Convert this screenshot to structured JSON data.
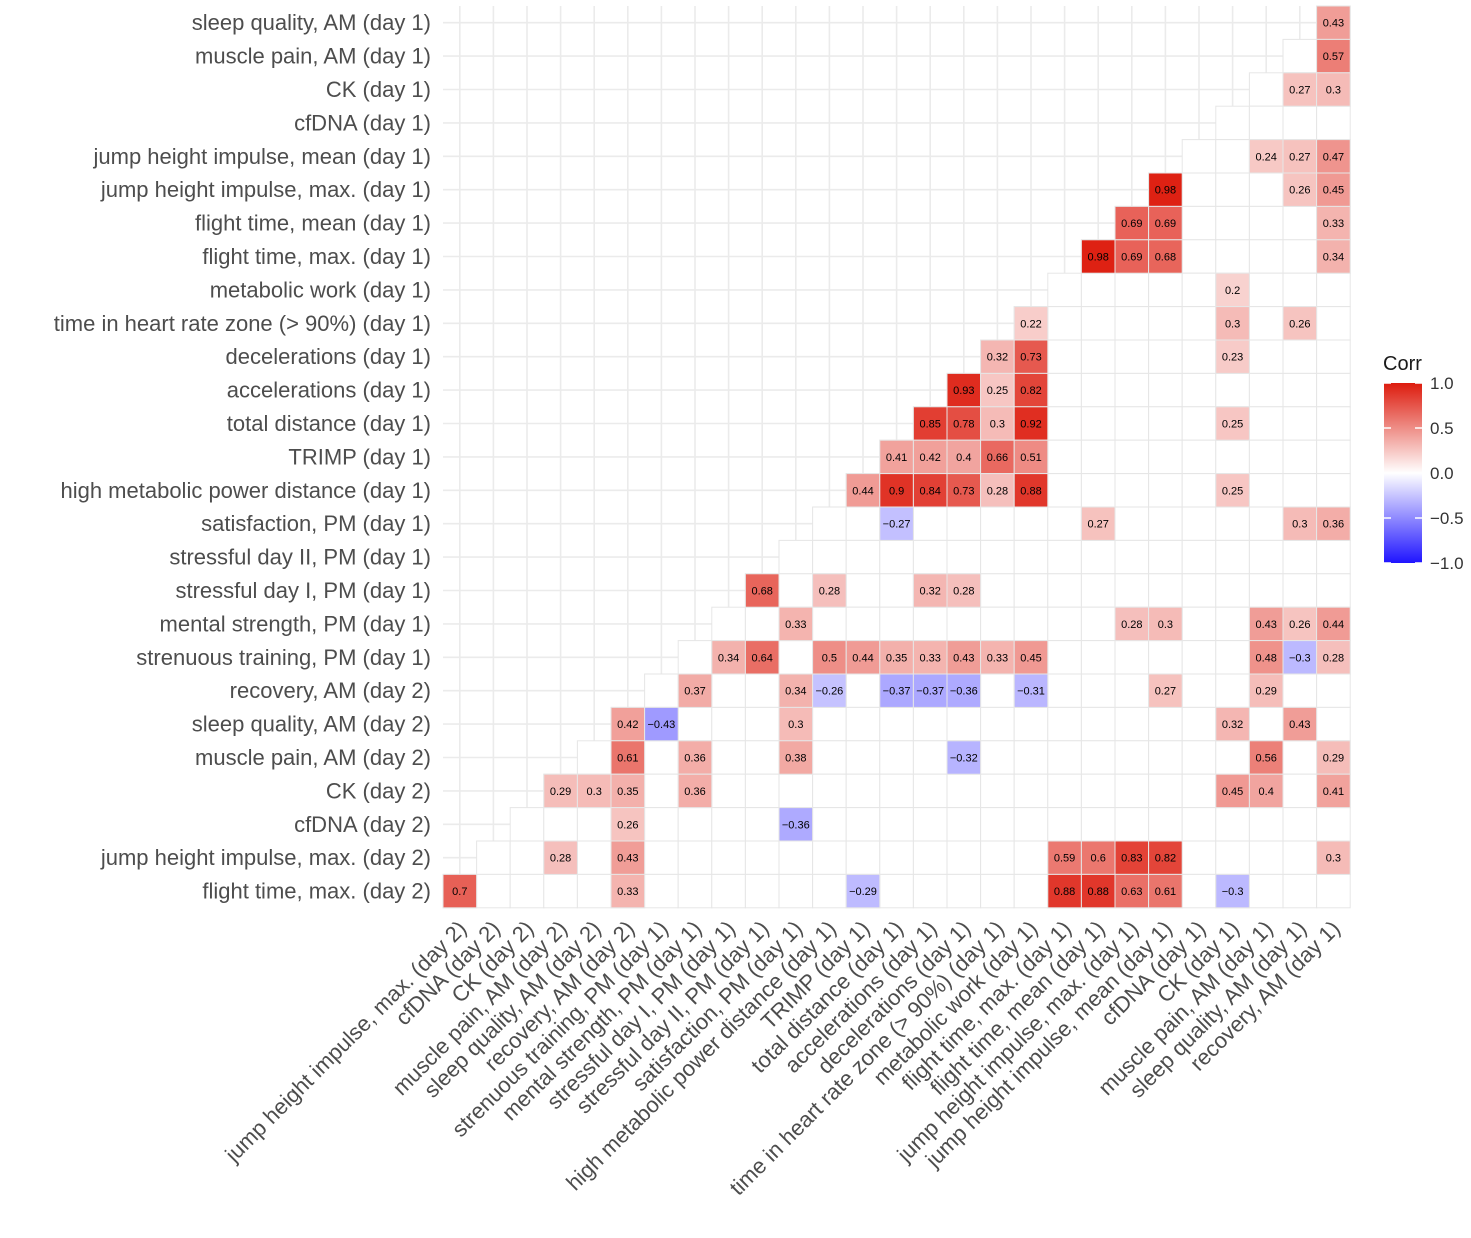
{
  "chart_data": {
    "type": "heatmap",
    "title": "",
    "legend_title": "Corr",
    "legend_range": [
      -1.0,
      1.0
    ],
    "legend_ticks": [
      "1.0",
      "0.5",
      "0.0",
      "−0.5",
      "−1.0"
    ],
    "legend_tick_values": [
      1.0,
      0.5,
      0.0,
      -0.5,
      -1.0
    ],
    "legend_position": "right",
    "colors": {
      "high": "#dd1c0e",
      "mid": "#ffffff",
      "low": "#1f14ff",
      "grid": "#ebebeb",
      "cell_border": "#e6e6e6"
    },
    "rows": [
      "sleep quality, AM (day 1)",
      "muscle pain, AM (day 1)",
      "CK (day 1)",
      "cfDNA (day 1)",
      "jump height impulse, mean (day 1)",
      "jump height impulse, max. (day 1)",
      "flight time, mean (day 1)",
      "flight time, max. (day 1)",
      "metabolic work (day 1)",
      "time in heart rate zone (> 90%) (day 1)",
      "decelerations (day 1)",
      "accelerations (day 1)",
      "total distance (day 1)",
      "TRIMP (day 1)",
      "high metabolic power distance (day 1)",
      "satisfaction, PM (day 1)",
      "stressful day II, PM (day 1)",
      "stressful day I, PM (day 1)",
      "mental strength, PM (day 1)",
      "strenuous training, PM (day 1)",
      "recovery, AM (day 2)",
      "sleep quality, AM (day 2)",
      "muscle pain, AM (day 2)",
      "CK (day 2)",
      "cfDNA (day 2)",
      "jump height impulse, max. (day 2)",
      "flight time, max. (day 2)"
    ],
    "columns": [
      "jump height impulse, max. (day 2)",
      "cfDNA (day 2)",
      "CK (day 2)",
      "muscle pain, AM (day 2)",
      "sleep quality, AM (day 2)",
      "recovery, AM (day 2)",
      "strenuous training, PM (day 1)",
      "mental strength, PM (day 1)",
      "stressful day I, PM (day 1)",
      "stressful day II, PM (day 1)",
      "satisfaction, PM (day 1)",
      "high metabolic power distance (day 1)",
      "TRIMP (day 1)",
      "total distance (day 1)",
      "accelerations (day 1)",
      "decelerations (day 1)",
      "time in heart rate zone (> 90%) (day 1)",
      "metabolic work (day 1)",
      "flight time, max. (day 1)",
      "flight time, mean (day 1)",
      "jump height impulse, max. (day 1)",
      "jump height impulse, mean (day 1)",
      "cfDNA (day 1)",
      "CK (day 1)",
      "muscle pain, AM (day 1)",
      "sleep quality, AM (day 1)",
      "recovery, AM (day 1)"
    ],
    "cells": [
      {
        "row": 0,
        "col": 26,
        "value": 0.43,
        "label": "0.43"
      },
      {
        "row": 1,
        "col": 26,
        "value": 0.57,
        "label": "0.57"
      },
      {
        "row": 2,
        "col": 25,
        "value": 0.27,
        "label": "0.27"
      },
      {
        "row": 2,
        "col": 26,
        "value": 0.3,
        "label": "0.3"
      },
      {
        "row": 4,
        "col": 24,
        "value": 0.24,
        "label": "0.24"
      },
      {
        "row": 4,
        "col": 25,
        "value": 0.27,
        "label": "0.27"
      },
      {
        "row": 4,
        "col": 26,
        "value": 0.47,
        "label": "0.47"
      },
      {
        "row": 5,
        "col": 21,
        "value": 0.98,
        "label": "0.98"
      },
      {
        "row": 5,
        "col": 25,
        "value": 0.26,
        "label": "0.26"
      },
      {
        "row": 5,
        "col": 26,
        "value": 0.45,
        "label": "0.45"
      },
      {
        "row": 6,
        "col": 20,
        "value": 0.69,
        "label": "0.69"
      },
      {
        "row": 6,
        "col": 21,
        "value": 0.69,
        "label": "0.69"
      },
      {
        "row": 6,
        "col": 26,
        "value": 0.33,
        "label": "0.33"
      },
      {
        "row": 7,
        "col": 19,
        "value": 0.98,
        "label": "0.98"
      },
      {
        "row": 7,
        "col": 20,
        "value": 0.69,
        "label": "0.69"
      },
      {
        "row": 7,
        "col": 21,
        "value": 0.68,
        "label": "0.68"
      },
      {
        "row": 7,
        "col": 26,
        "value": 0.34,
        "label": "0.34"
      },
      {
        "row": 8,
        "col": 23,
        "value": 0.2,
        "label": "0.2"
      },
      {
        "row": 9,
        "col": 17,
        "value": 0.22,
        "label": "0.22"
      },
      {
        "row": 9,
        "col": 23,
        "value": 0.3,
        "label": "0.3"
      },
      {
        "row": 9,
        "col": 25,
        "value": 0.26,
        "label": "0.26"
      },
      {
        "row": 10,
        "col": 16,
        "value": 0.32,
        "label": "0.32"
      },
      {
        "row": 10,
        "col": 17,
        "value": 0.73,
        "label": "0.73"
      },
      {
        "row": 10,
        "col": 23,
        "value": 0.23,
        "label": "0.23"
      },
      {
        "row": 11,
        "col": 15,
        "value": 0.93,
        "label": "0.93"
      },
      {
        "row": 11,
        "col": 16,
        "value": 0.25,
        "label": "0.25"
      },
      {
        "row": 11,
        "col": 17,
        "value": 0.82,
        "label": "0.82"
      },
      {
        "row": 12,
        "col": 14,
        "value": 0.85,
        "label": "0.85"
      },
      {
        "row": 12,
        "col": 15,
        "value": 0.78,
        "label": "0.78"
      },
      {
        "row": 12,
        "col": 16,
        "value": 0.3,
        "label": "0.3"
      },
      {
        "row": 12,
        "col": 17,
        "value": 0.92,
        "label": "0.92"
      },
      {
        "row": 12,
        "col": 23,
        "value": 0.25,
        "label": "0.25"
      },
      {
        "row": 13,
        "col": 13,
        "value": 0.41,
        "label": "0.41"
      },
      {
        "row": 13,
        "col": 14,
        "value": 0.42,
        "label": "0.42"
      },
      {
        "row": 13,
        "col": 15,
        "value": 0.4,
        "label": "0.4"
      },
      {
        "row": 13,
        "col": 16,
        "value": 0.66,
        "label": "0.66"
      },
      {
        "row": 13,
        "col": 17,
        "value": 0.51,
        "label": "0.51"
      },
      {
        "row": 14,
        "col": 12,
        "value": 0.44,
        "label": "0.44"
      },
      {
        "row": 14,
        "col": 13,
        "value": 0.9,
        "label": "0.9"
      },
      {
        "row": 14,
        "col": 14,
        "value": 0.84,
        "label": "0.84"
      },
      {
        "row": 14,
        "col": 15,
        "value": 0.73,
        "label": "0.73"
      },
      {
        "row": 14,
        "col": 16,
        "value": 0.28,
        "label": "0.28"
      },
      {
        "row": 14,
        "col": 17,
        "value": 0.88,
        "label": "0.88"
      },
      {
        "row": 14,
        "col": 23,
        "value": 0.25,
        "label": "0.25"
      },
      {
        "row": 15,
        "col": 13,
        "value": -0.27,
        "label": "−0.27"
      },
      {
        "row": 15,
        "col": 19,
        "value": 0.27,
        "label": "0.27"
      },
      {
        "row": 15,
        "col": 25,
        "value": 0.3,
        "label": "0.3"
      },
      {
        "row": 15,
        "col": 26,
        "value": 0.36,
        "label": "0.36"
      },
      {
        "row": 17,
        "col": 9,
        "value": 0.68,
        "label": "0.68"
      },
      {
        "row": 17,
        "col": 11,
        "value": 0.28,
        "label": "0.28"
      },
      {
        "row": 17,
        "col": 14,
        "value": 0.32,
        "label": "0.32"
      },
      {
        "row": 17,
        "col": 15,
        "value": 0.28,
        "label": "0.28"
      },
      {
        "row": 18,
        "col": 10,
        "value": 0.33,
        "label": "0.33"
      },
      {
        "row": 18,
        "col": 20,
        "value": 0.28,
        "label": "0.28"
      },
      {
        "row": 18,
        "col": 21,
        "value": 0.3,
        "label": "0.3"
      },
      {
        "row": 18,
        "col": 24,
        "value": 0.43,
        "label": "0.43"
      },
      {
        "row": 18,
        "col": 25,
        "value": 0.26,
        "label": "0.26"
      },
      {
        "row": 18,
        "col": 26,
        "value": 0.44,
        "label": "0.44"
      },
      {
        "row": 19,
        "col": 8,
        "value": 0.34,
        "label": "0.34"
      },
      {
        "row": 19,
        "col": 9,
        "value": 0.64,
        "label": "0.64"
      },
      {
        "row": 19,
        "col": 11,
        "value": 0.5,
        "label": "0.5"
      },
      {
        "row": 19,
        "col": 12,
        "value": 0.44,
        "label": "0.44"
      },
      {
        "row": 19,
        "col": 13,
        "value": 0.35,
        "label": "0.35"
      },
      {
        "row": 19,
        "col": 14,
        "value": 0.33,
        "label": "0.33"
      },
      {
        "row": 19,
        "col": 15,
        "value": 0.43,
        "label": "0.43"
      },
      {
        "row": 19,
        "col": 16,
        "value": 0.33,
        "label": "0.33"
      },
      {
        "row": 19,
        "col": 17,
        "value": 0.45,
        "label": "0.45"
      },
      {
        "row": 19,
        "col": 24,
        "value": 0.48,
        "label": "0.48"
      },
      {
        "row": 19,
        "col": 25,
        "value": -0.3,
        "label": "−0.3"
      },
      {
        "row": 19,
        "col": 26,
        "value": 0.28,
        "label": "0.28"
      },
      {
        "row": 20,
        "col": 7,
        "value": 0.37,
        "label": "0.37"
      },
      {
        "row": 20,
        "col": 10,
        "value": 0.34,
        "label": "0.34"
      },
      {
        "row": 20,
        "col": 11,
        "value": -0.26,
        "label": "−0.26"
      },
      {
        "row": 20,
        "col": 13,
        "value": -0.37,
        "label": "−0.37"
      },
      {
        "row": 20,
        "col": 14,
        "value": -0.37,
        "label": "−0.37"
      },
      {
        "row": 20,
        "col": 15,
        "value": -0.36,
        "label": "−0.36"
      },
      {
        "row": 20,
        "col": 17,
        "value": -0.31,
        "label": "−0.31"
      },
      {
        "row": 20,
        "col": 21,
        "value": 0.27,
        "label": "0.27"
      },
      {
        "row": 20,
        "col": 24,
        "value": 0.29,
        "label": "0.29"
      },
      {
        "row": 21,
        "col": 5,
        "value": 0.42,
        "label": "0.42"
      },
      {
        "row": 21,
        "col": 6,
        "value": -0.43,
        "label": "−0.43"
      },
      {
        "row": 21,
        "col": 10,
        "value": 0.3,
        "label": "0.3"
      },
      {
        "row": 21,
        "col": 23,
        "value": 0.32,
        "label": "0.32"
      },
      {
        "row": 21,
        "col": 25,
        "value": 0.43,
        "label": "0.43"
      },
      {
        "row": 22,
        "col": 5,
        "value": 0.61,
        "label": "0.61"
      },
      {
        "row": 22,
        "col": 7,
        "value": 0.36,
        "label": "0.36"
      },
      {
        "row": 22,
        "col": 10,
        "value": 0.38,
        "label": "0.38"
      },
      {
        "row": 22,
        "col": 15,
        "value": -0.32,
        "label": "−0.32"
      },
      {
        "row": 22,
        "col": 24,
        "value": 0.56,
        "label": "0.56"
      },
      {
        "row": 22,
        "col": 26,
        "value": 0.29,
        "label": "0.29"
      },
      {
        "row": 23,
        "col": 3,
        "value": 0.29,
        "label": "0.29"
      },
      {
        "row": 23,
        "col": 4,
        "value": 0.3,
        "label": "0.3"
      },
      {
        "row": 23,
        "col": 5,
        "value": 0.35,
        "label": "0.35"
      },
      {
        "row": 23,
        "col": 7,
        "value": 0.36,
        "label": "0.36"
      },
      {
        "row": 23,
        "col": 23,
        "value": 0.45,
        "label": "0.45"
      },
      {
        "row": 23,
        "col": 24,
        "value": 0.4,
        "label": "0.4"
      },
      {
        "row": 23,
        "col": 26,
        "value": 0.41,
        "label": "0.41"
      },
      {
        "row": 24,
        "col": 5,
        "value": 0.26,
        "label": "0.26"
      },
      {
        "row": 24,
        "col": 10,
        "value": -0.36,
        "label": "−0.36"
      },
      {
        "row": 25,
        "col": 3,
        "value": 0.28,
        "label": "0.28"
      },
      {
        "row": 25,
        "col": 5,
        "value": 0.43,
        "label": "0.43"
      },
      {
        "row": 25,
        "col": 18,
        "value": 0.59,
        "label": "0.59"
      },
      {
        "row": 25,
        "col": 19,
        "value": 0.6,
        "label": "0.6"
      },
      {
        "row": 25,
        "col": 20,
        "value": 0.83,
        "label": "0.83"
      },
      {
        "row": 25,
        "col": 21,
        "value": 0.82,
        "label": "0.82"
      },
      {
        "row": 25,
        "col": 26,
        "value": 0.3,
        "label": "0.3"
      },
      {
        "row": 26,
        "col": 0,
        "value": 0.7,
        "label": "0.7"
      },
      {
        "row": 26,
        "col": 5,
        "value": 0.33,
        "label": "0.33"
      },
      {
        "row": 26,
        "col": 12,
        "value": -0.29,
        "label": "−0.29"
      },
      {
        "row": 26,
        "col": 18,
        "value": 0.88,
        "label": "0.88"
      },
      {
        "row": 26,
        "col": 19,
        "value": 0.88,
        "label": "0.88"
      },
      {
        "row": 26,
        "col": 20,
        "value": 0.63,
        "label": "0.63"
      },
      {
        "row": 26,
        "col": 21,
        "value": 0.61,
        "label": "0.61"
      },
      {
        "row": 26,
        "col": 23,
        "value": -0.3,
        "label": "−0.3"
      }
    ]
  }
}
